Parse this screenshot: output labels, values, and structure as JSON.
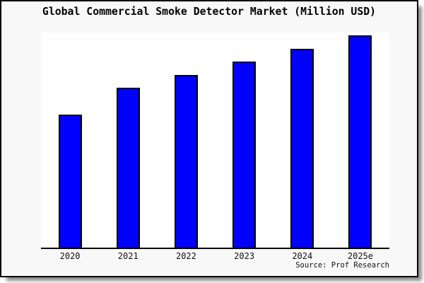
{
  "window": {
    "background": "#f8f8f8",
    "border_color": "#000000",
    "shadow_color": "#777777"
  },
  "header": {
    "title": "Global Commercial Smoke Detector Market (Million USD)"
  },
  "footer": {
    "source": "Source: Prof Research"
  },
  "colors": {
    "bar_fill": "#0000fe",
    "bar_border": "#000000",
    "plot_background": "#ffffff",
    "axis": "#000000",
    "text": "#000000"
  },
  "chart_data": {
    "type": "bar",
    "title": "Global Commercial Smoke Detector Market (Million USD)",
    "categories": [
      "2020",
      "2021",
      "2022",
      "2023",
      "2024",
      "2025e"
    ],
    "values": [
      62.7,
      75.3,
      81.5,
      87.7,
      93.8,
      100
    ],
    "value_units": "relative index (chart shows no y-axis scale; bar heights normalized to 2025e = 100)",
    "xlabel": "",
    "ylabel": "",
    "ylim": [
      0,
      101.5
    ],
    "grid": false,
    "legend": false,
    "y_axis_visible": false,
    "annotations": [
      "Source: Prof Research"
    ]
  }
}
